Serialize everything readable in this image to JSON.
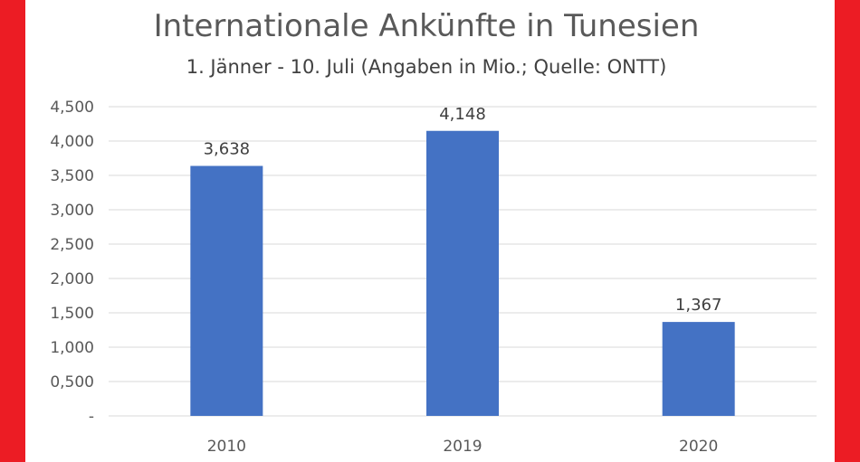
{
  "chart_data": {
    "type": "bar",
    "title": "Internationale Ankünfte in Tunesien",
    "subtitle": "1. Jänner - 10. Juli (Angaben in Mio.; Quelle: ONTT)",
    "categories": [
      "2010",
      "2019",
      "2020"
    ],
    "values": [
      3.638,
      4.148,
      1.367
    ],
    "data_labels": [
      "3,638",
      "4,148",
      "1,367"
    ],
    "y_tick_values": [
      0,
      0.5,
      1.0,
      1.5,
      2.0,
      2.5,
      3.0,
      3.5,
      4.0,
      4.5
    ],
    "y_tick_labels": [
      "-",
      "0,500",
      "1,000",
      "1,500",
      "2,000",
      "2,500",
      "3,000",
      "3,500",
      "4,000",
      "4,500"
    ],
    "ylim": [
      0,
      4.5
    ],
    "grid": true,
    "legend": "none",
    "bar_color": "#4472c4",
    "border_color": "#ec1c24"
  }
}
